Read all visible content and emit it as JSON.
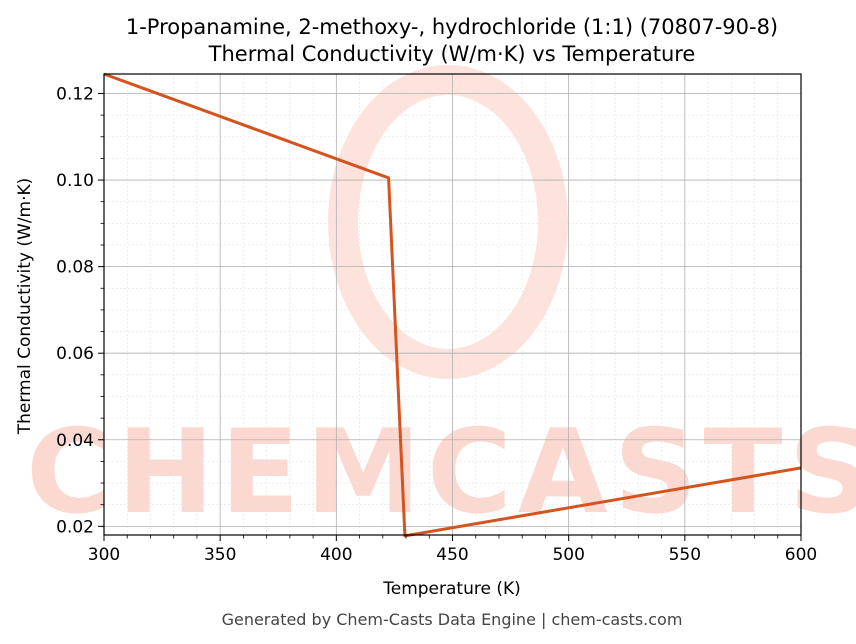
{
  "chart_data": {
    "type": "line",
    "title_lines": [
      "1-Propanamine, 2-methoxy-, hydrochloride (1:1) (70807-90-8)",
      "Thermal Conductivity (W/m·K) vs Temperature"
    ],
    "xlabel": "Temperature (K)",
    "ylabel": "Thermal Conductivity (W/m·K)",
    "xlim": [
      300,
      600
    ],
    "ylim": [
      0.018,
      0.1245
    ],
    "x_ticks": [
      300,
      350,
      400,
      450,
      500,
      550,
      600
    ],
    "x_tick_labels": [
      "300",
      "350",
      "400",
      "450",
      "500",
      "550",
      "600"
    ],
    "y_ticks": [
      0.02,
      0.04,
      0.06,
      0.08,
      0.1,
      0.12
    ],
    "y_tick_labels": [
      "0.02",
      "0.04",
      "0.06",
      "0.08",
      "0.10",
      "0.12"
    ],
    "grid": true,
    "series": [
      {
        "color": "#d4541f",
        "x": [
          300,
          422.5,
          429.5,
          600
        ],
        "y": [
          0.1245,
          0.1005,
          0.0178,
          0.0335
        ]
      }
    ]
  },
  "watermark": {
    "text": "CHEMCASTS",
    "color": "#fcd9d0"
  },
  "footer": "Generated by Chem-Casts Data Engine | chem-casts.com"
}
